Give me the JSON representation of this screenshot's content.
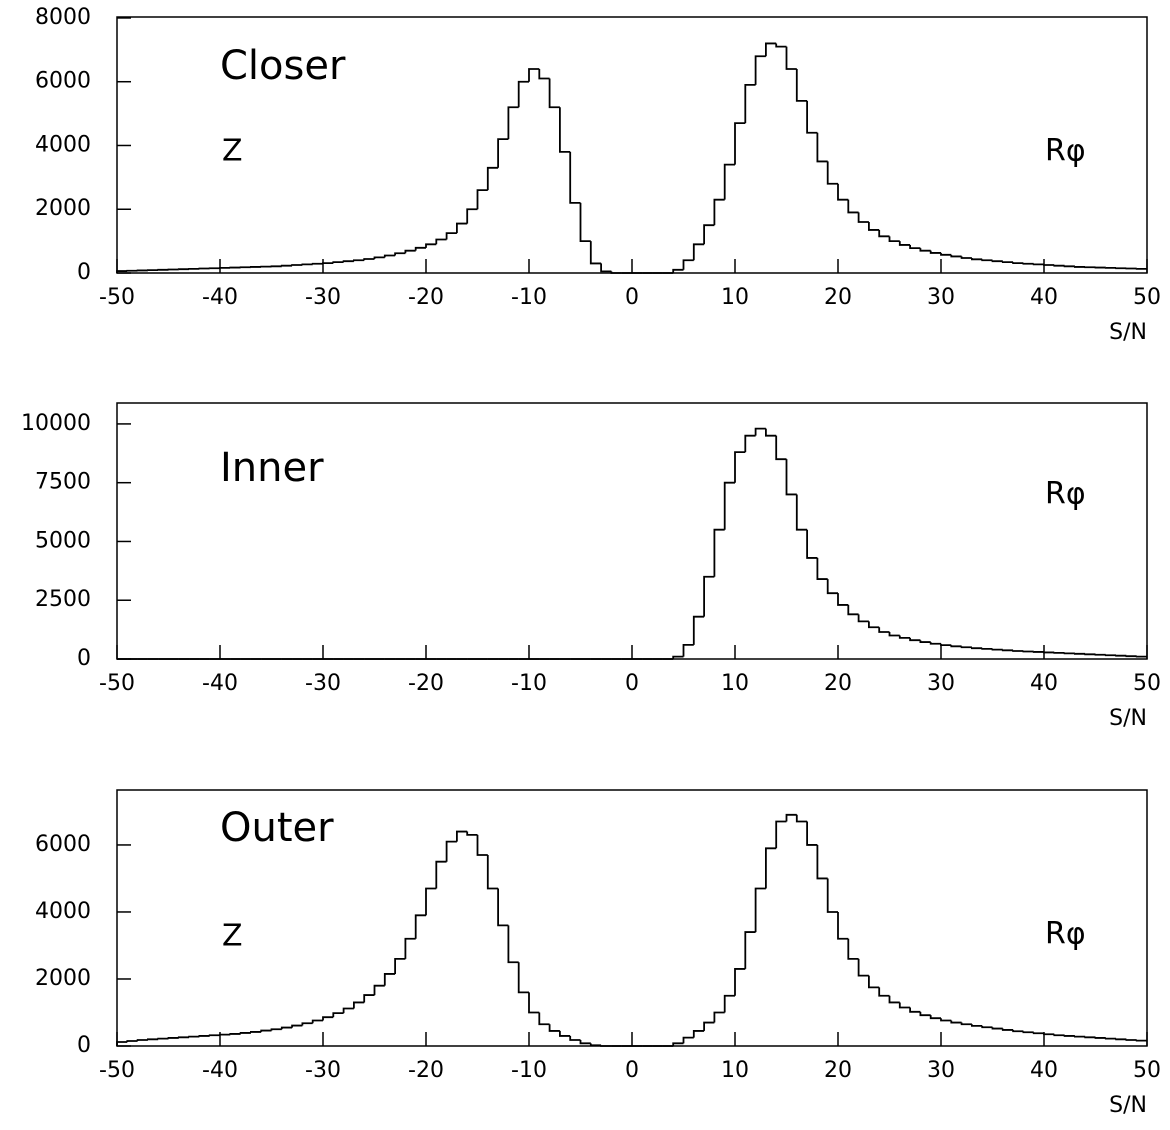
{
  "chart_data": [
    {
      "type": "histogram",
      "title": "Closer",
      "annotation_left": "Z",
      "annotation_right": "Rφ",
      "xlabel": "S/N",
      "color": "#000000",
      "bins": [
        -50,
        -49,
        -48,
        -47,
        -46,
        -45,
        -44,
        -43,
        -42,
        -41,
        -40,
        -39,
        -38,
        -37,
        -36,
        -35,
        -34,
        -33,
        -32,
        -31,
        -30,
        -29,
        -28,
        -27,
        -26,
        -25,
        -24,
        -23,
        -22,
        -21,
        -20,
        -19,
        -18,
        -17,
        -16,
        -15,
        -14,
        -13,
        -12,
        -11,
        -10,
        -9,
        -8,
        -7,
        -6,
        -5,
        -4,
        -3,
        -2,
        -1,
        0,
        1,
        2,
        3,
        4,
        5,
        6,
        7,
        8,
        9,
        10,
        11,
        12,
        13,
        14,
        15,
        16,
        17,
        18,
        19,
        20,
        21,
        22,
        23,
        24,
        25,
        26,
        27,
        28,
        29,
        30,
        31,
        32,
        33,
        34,
        35,
        36,
        37,
        38,
        39,
        40,
        41,
        42,
        43,
        44,
        45,
        46,
        47,
        48,
        49,
        50
      ],
      "values": [
        60,
        70,
        80,
        90,
        100,
        110,
        120,
        130,
        140,
        150,
        160,
        170,
        180,
        190,
        200,
        210,
        230,
        250,
        270,
        290,
        310,
        340,
        370,
        400,
        440,
        490,
        550,
        620,
        700,
        790,
        900,
        1050,
        1250,
        1550,
        2000,
        2600,
        3300,
        4200,
        5200,
        6000,
        6400,
        6100,
        5200,
        3800,
        2200,
        1000,
        300,
        50,
        0,
        0,
        0,
        0,
        0,
        0,
        100,
        400,
        900,
        1500,
        2300,
        3400,
        4700,
        5900,
        6800,
        7200,
        7100,
        6400,
        5400,
        4400,
        3500,
        2800,
        2300,
        1900,
        1600,
        1350,
        1150,
        1000,
        880,
        780,
        700,
        630,
        570,
        520,
        470,
        430,
        400,
        370,
        340,
        310,
        290,
        270,
        250,
        230,
        210,
        190,
        180,
        170,
        160,
        150,
        140,
        130
      ],
      "xlim": [
        -50,
        50
      ],
      "xticks": [
        -50,
        -40,
        -30,
        -20,
        -10,
        0,
        10,
        20,
        30,
        40,
        50
      ],
      "ylim": [
        0,
        8030
      ],
      "yticks": [
        0,
        2000,
        4000,
        6000,
        8000
      ]
    },
    {
      "type": "histogram",
      "title": "Inner",
      "annotation_right": "Rφ",
      "xlabel": "S/N",
      "color": "#000000",
      "bins": [
        -50,
        -49,
        -48,
        -47,
        -46,
        -45,
        -44,
        -43,
        -42,
        -41,
        -40,
        -39,
        -38,
        -37,
        -36,
        -35,
        -34,
        -33,
        -32,
        -31,
        -30,
        -29,
        -28,
        -27,
        -26,
        -25,
        -24,
        -23,
        -22,
        -21,
        -20,
        -19,
        -18,
        -17,
        -16,
        -15,
        -14,
        -13,
        -12,
        -11,
        -10,
        -9,
        -8,
        -7,
        -6,
        -5,
        -4,
        -3,
        -2,
        -1,
        0,
        1,
        2,
        3,
        4,
        5,
        6,
        7,
        8,
        9,
        10,
        11,
        12,
        13,
        14,
        15,
        16,
        17,
        18,
        19,
        20,
        21,
        22,
        23,
        24,
        25,
        26,
        27,
        28,
        29,
        30,
        31,
        32,
        33,
        34,
        35,
        36,
        37,
        38,
        39,
        40,
        41,
        42,
        43,
        44,
        45,
        46,
        47,
        48,
        49,
        50
      ],
      "values": [
        0,
        0,
        0,
        0,
        0,
        0,
        0,
        0,
        0,
        0,
        0,
        0,
        0,
        0,
        0,
        0,
        0,
        0,
        0,
        0,
        0,
        0,
        0,
        0,
        0,
        0,
        0,
        0,
        0,
        0,
        0,
        0,
        0,
        0,
        0,
        0,
        0,
        0,
        0,
        0,
        0,
        0,
        0,
        0,
        0,
        0,
        0,
        0,
        0,
        0,
        0,
        0,
        0,
        0,
        100,
        600,
        1800,
        3500,
        5500,
        7500,
        8800,
        9500,
        9800,
        9500,
        8500,
        7000,
        5500,
        4300,
        3400,
        2800,
        2300,
        1900,
        1600,
        1350,
        1150,
        1000,
        900,
        800,
        720,
        650,
        590,
        540,
        500,
        460,
        430,
        400,
        370,
        340,
        320,
        300,
        280,
        260,
        240,
        220,
        200,
        180,
        160,
        140,
        120,
        100
      ],
      "xlim": [
        -50,
        50
      ],
      "xticks": [
        -50,
        -40,
        -30,
        -20,
        -10,
        0,
        10,
        20,
        30,
        40,
        50
      ],
      "ylim": [
        0,
        10890
      ],
      "yticks": [
        0,
        2500,
        5000,
        7500,
        10000
      ]
    },
    {
      "type": "histogram",
      "title": "Outer",
      "annotation_left": "Z",
      "annotation_right": "Rφ",
      "xlabel": "S/N",
      "color": "#000000",
      "bins": [
        -50,
        -49,
        -48,
        -47,
        -46,
        -45,
        -44,
        -43,
        -42,
        -41,
        -40,
        -39,
        -38,
        -37,
        -36,
        -35,
        -34,
        -33,
        -32,
        -31,
        -30,
        -29,
        -28,
        -27,
        -26,
        -25,
        -24,
        -23,
        -22,
        -21,
        -20,
        -19,
        -18,
        -17,
        -16,
        -15,
        -14,
        -13,
        -12,
        -11,
        -10,
        -9,
        -8,
        -7,
        -6,
        -5,
        -4,
        -3,
        -2,
        -1,
        0,
        1,
        2,
        3,
        4,
        5,
        6,
        7,
        8,
        9,
        10,
        11,
        12,
        13,
        14,
        15,
        16,
        17,
        18,
        19,
        20,
        21,
        22,
        23,
        24,
        25,
        26,
        27,
        28,
        29,
        30,
        31,
        32,
        33,
        34,
        35,
        36,
        37,
        38,
        39,
        40,
        41,
        42,
        43,
        44,
        45,
        46,
        47,
        48,
        49,
        50
      ],
      "values": [
        120,
        150,
        180,
        200,
        220,
        240,
        260,
        280,
        300,
        320,
        340,
        360,
        390,
        420,
        460,
        500,
        550,
        610,
        680,
        760,
        860,
        980,
        1120,
        1300,
        1520,
        1800,
        2150,
        2600,
        3200,
        3900,
        4700,
        5500,
        6100,
        6400,
        6300,
        5700,
        4700,
        3600,
        2500,
        1600,
        1000,
        650,
        450,
        300,
        180,
        80,
        20,
        0,
        0,
        0,
        0,
        0,
        0,
        0,
        80,
        250,
        450,
        700,
        1000,
        1500,
        2300,
        3400,
        4700,
        5900,
        6700,
        6900,
        6700,
        6000,
        5000,
        4000,
        3200,
        2600,
        2100,
        1750,
        1500,
        1300,
        1150,
        1020,
        920,
        830,
        760,
        700,
        650,
        600,
        560,
        520,
        480,
        440,
        410,
        380,
        350,
        320,
        300,
        280,
        260,
        240,
        220,
        200,
        180,
        160
      ],
      "xlim": [
        -50,
        50
      ],
      "xticks": [
        -50,
        -40,
        -30,
        -20,
        -10,
        0,
        10,
        20,
        30,
        40,
        50
      ],
      "ylim": [
        0,
        7640
      ],
      "yticks": [
        0,
        2000,
        4000,
        6000
      ]
    }
  ]
}
